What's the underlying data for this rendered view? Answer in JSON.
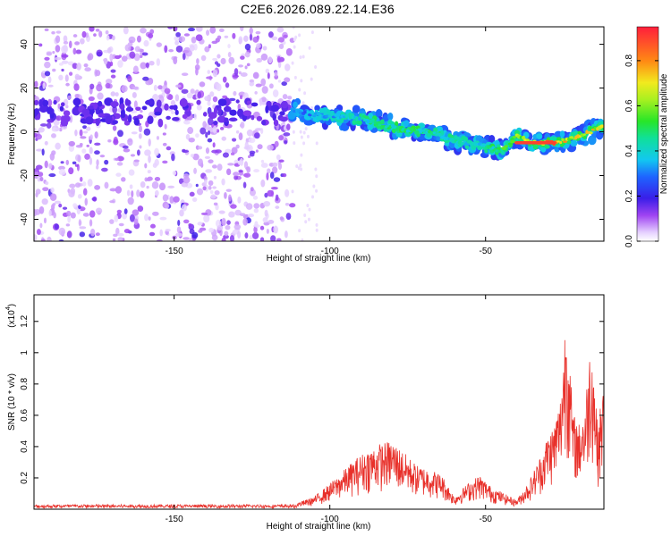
{
  "title": "C2E6.2026.089.22.14.E36",
  "colors": {
    "snr_line": "#e8302a",
    "ridge_main": "#2a9cf0",
    "scatter": "#8a3cf0"
  },
  "chart_data": [
    {
      "type": "heatmap",
      "title": "C2E6.2026.089.22.14.E36",
      "xlabel": "Height of straight line (km)",
      "ylabel": "Frequency (Hz)",
      "xlim": [
        -195,
        -12
      ],
      "ylim": [
        -50,
        48
      ],
      "xticks": [
        -150,
        -100,
        -50
      ],
      "yticks": [
        -40,
        -20,
        0,
        20,
        40
      ],
      "colorbar": {
        "label": "Normalized spectral amplitude",
        "range": [
          0,
          0.95
        ],
        "ticks": [
          0.0,
          0.2,
          0.4,
          0.6,
          0.8
        ]
      },
      "ridge": {
        "x": [
          -112,
          -105,
          -98,
          -90,
          -82,
          -75,
          -68,
          -60,
          -52,
          -45,
          -40,
          -35,
          -28,
          -22,
          -16,
          -12
        ],
        "frequency": [
          10,
          8,
          7,
          6,
          3,
          1,
          0,
          -4,
          -6,
          -9,
          -2,
          -5,
          -5,
          -3,
          0,
          3
        ],
        "peak_amplitude": [
          0.35,
          0.4,
          0.45,
          0.5,
          0.55,
          0.55,
          0.55,
          0.5,
          0.45,
          0.6,
          0.7,
          0.95,
          0.95,
          0.8,
          0.85,
          0.75
        ]
      },
      "noise_region": {
        "x_range": [
          -195,
          -112
        ],
        "frequency_range": [
          -50,
          48
        ],
        "amplitude": 0.1
      }
    },
    {
      "type": "line",
      "xlabel": "Height of straight line (km)",
      "ylabel": "SNR (10 * v/v)",
      "y_scale_label": "(x10",
      "y_scale_exponent": "4",
      "xlim": [
        -195,
        -12
      ],
      "ylim": [
        0,
        1.37
      ],
      "xticks": [
        -150,
        -100,
        -50
      ],
      "yticks": [
        0.2,
        0.4,
        0.6,
        0.8,
        1.0,
        1.2
      ],
      "series": [
        {
          "name": "SNR",
          "envelope_x": [
            -195,
            -150,
            -120,
            -112,
            -105,
            -98,
            -92,
            -88,
            -84,
            -80,
            -76,
            -72,
            -68,
            -64,
            -60,
            -56,
            -52,
            -48,
            -44,
            -40,
            -36,
            -32,
            -30,
            -28,
            -26,
            -24,
            -22,
            -20,
            -18,
            -16,
            -14,
            -12
          ],
          "envelope_y": [
            0.02,
            0.02,
            0.02,
            0.03,
            0.08,
            0.2,
            0.32,
            0.38,
            0.42,
            0.44,
            0.36,
            0.28,
            0.26,
            0.22,
            0.08,
            0.16,
            0.22,
            0.14,
            0.1,
            0.06,
            0.18,
            0.36,
            0.48,
            0.55,
            0.72,
            1.36,
            0.62,
            0.55,
            0.68,
            1.18,
            0.55,
            0.8
          ]
        }
      ]
    }
  ]
}
